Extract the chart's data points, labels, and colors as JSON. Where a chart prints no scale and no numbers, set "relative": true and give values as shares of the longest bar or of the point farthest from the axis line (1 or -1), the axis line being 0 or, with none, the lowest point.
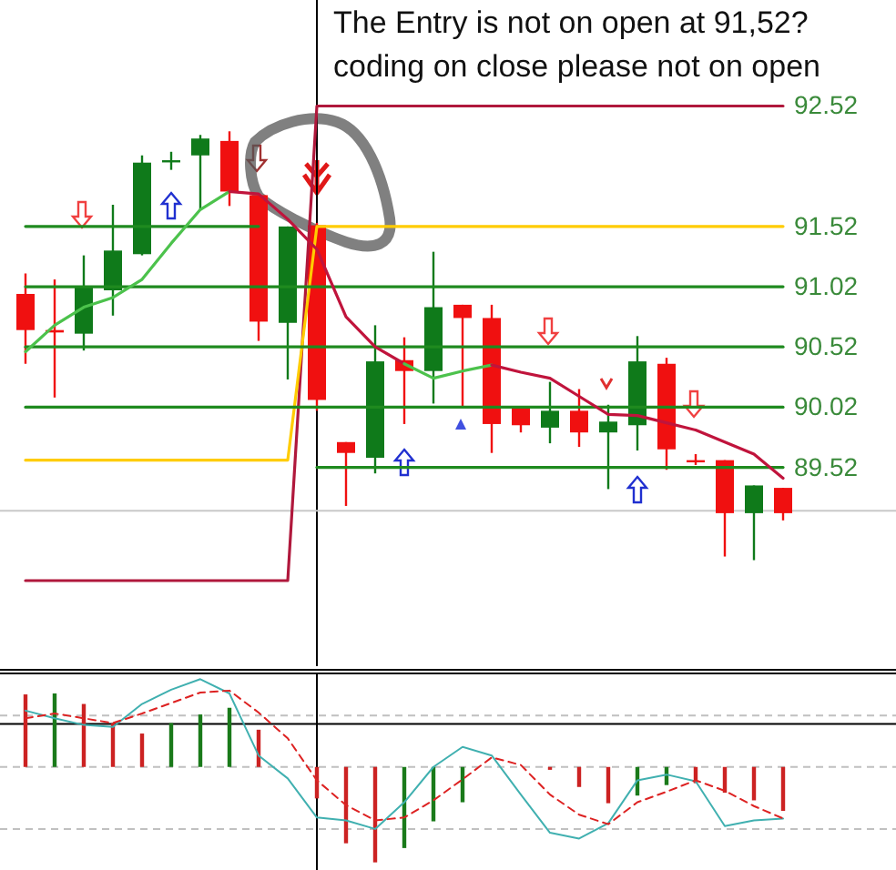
{
  "chart_data": [
    {
      "type": "candlestick",
      "annotations": [
        "The Entry is not on open at 91,52?",
        "coding on close please not on open"
      ],
      "categories": [
        null,
        null,
        null,
        null,
        null,
        null,
        null,
        null,
        null,
        null,
        null,
        null,
        null,
        null,
        null,
        null,
        null,
        null,
        null,
        null,
        null,
        null,
        null,
        null,
        null,
        null,
        null
      ],
      "ohlc": [
        [
          90.96,
          91.13,
          90.38,
          90.66
        ],
        [
          90.66,
          91.08,
          90.1,
          90.64
        ],
        [
          90.63,
          91.28,
          90.49,
          91.02
        ],
        [
          90.99,
          91.7,
          90.78,
          91.32
        ],
        [
          91.29,
          92.11,
          91.28,
          92.05
        ],
        [
          92.06,
          92.14,
          91.99,
          92.07
        ],
        [
          92.11,
          92.28,
          91.66,
          92.25
        ],
        [
          92.23,
          92.31,
          91.69,
          91.81
        ],
        [
          91.78,
          91.78,
          90.57,
          90.73
        ],
        [
          90.72,
          91.52,
          90.25,
          91.52
        ],
        [
          91.53,
          91.55,
          89.99,
          90.08
        ],
        [
          89.73,
          89.73,
          89.2,
          89.64
        ],
        [
          89.6,
          90.7,
          89.47,
          90.4
        ],
        [
          90.41,
          90.6,
          89.88,
          90.32
        ],
        [
          90.32,
          91.31,
          90.05,
          90.85
        ],
        [
          90.87,
          90.87,
          90.02,
          90.76
        ],
        [
          90.76,
          90.87,
          89.64,
          89.88
        ],
        [
          90.02,
          90.02,
          89.81,
          89.87
        ],
        [
          89.85,
          90.23,
          89.72,
          89.99
        ],
        [
          89.99,
          90.17,
          89.69,
          89.81
        ],
        [
          89.81,
          90.04,
          89.34,
          89.9
        ],
        [
          89.87,
          90.61,
          89.66,
          90.4
        ],
        [
          90.38,
          90.43,
          89.5,
          89.67
        ],
        [
          89.58,
          89.63,
          89.54,
          89.57
        ],
        [
          89.58,
          89.58,
          88.78,
          89.14
        ],
        [
          89.14,
          89.37,
          88.75,
          89.37
        ],
        [
          89.35,
          89.35,
          89.08,
          89.14
        ]
      ],
      "colors": [
        "#f01010",
        "#f01010",
        "#0f7a1a",
        "#0f7a1a",
        "#0f7a1a",
        "#0f7a1a",
        "#0f7a1a",
        "#f01010",
        "#f01010",
        "#0f7a1a",
        "#f01010",
        "#f01010",
        "#0f7a1a",
        "#f01010",
        "#0f7a1a",
        "#f01010",
        "#f01010",
        "#f01010",
        "#0f7a1a",
        "#f01010",
        "#0f7a1a",
        "#0f7a1a",
        "#f01010",
        "#f01010",
        "#f01010",
        "#0f7a1a",
        "#f01010"
      ],
      "series": [
        {
          "type": "line",
          "color": "#b0183c",
          "values": [
            88.58,
            88.58,
            88.58,
            88.58,
            88.58,
            88.58,
            88.58,
            88.58,
            88.58,
            88.58,
            92.52,
            92.52,
            92.52,
            92.52,
            92.52,
            92.52,
            92.52,
            92.52,
            92.52,
            92.52,
            92.52,
            92.52,
            92.52,
            92.52,
            92.52,
            92.52,
            92.52
          ]
        },
        {
          "type": "line",
          "color": "#ffcc00",
          "values": [
            89.58,
            89.58,
            89.58,
            89.58,
            89.58,
            89.58,
            89.58,
            89.58,
            89.58,
            89.58,
            91.52,
            91.52,
            91.52,
            91.52,
            91.52,
            91.52,
            91.52,
            91.52,
            91.52,
            91.52,
            91.52,
            91.52,
            91.52,
            91.52,
            91.52,
            91.52,
            91.52
          ]
        },
        {
          "type": "line",
          "color": "#1f8a1f",
          "values": [
            91.52,
            91.52,
            91.52,
            91.52,
            91.52,
            91.52,
            91.52,
            91.52,
            91.52,
            null,
            null,
            null,
            null,
            null,
            null,
            null,
            null,
            null,
            null,
            null,
            null,
            null,
            null,
            null,
            null,
            null,
            null
          ]
        },
        {
          "type": "line",
          "color": "#1f8a1f",
          "values": [
            91.02,
            91.02,
            91.02,
            91.02,
            91.02,
            91.02,
            91.02,
            91.02,
            91.02,
            91.02,
            91.02,
            91.02,
            91.02,
            91.02,
            91.02,
            91.02,
            91.02,
            91.02,
            91.02,
            91.02,
            91.02,
            91.02,
            91.02,
            91.02,
            91.02,
            91.02,
            91.02
          ]
        },
        {
          "type": "line",
          "color": "#1f8a1f",
          "values": [
            90.52,
            90.52,
            90.52,
            90.52,
            90.52,
            90.52,
            90.52,
            90.52,
            90.52,
            90.52,
            90.52,
            90.52,
            90.52,
            90.52,
            90.52,
            90.52,
            90.52,
            90.52,
            90.52,
            90.52,
            90.52,
            90.52,
            90.52,
            90.52,
            90.52,
            90.52,
            90.52
          ]
        },
        {
          "type": "line",
          "color": "#1f8a1f",
          "values": [
            90.02,
            90.02,
            90.02,
            90.02,
            90.02,
            90.02,
            90.02,
            90.02,
            90.02,
            90.02,
            90.02,
            90.02,
            90.02,
            90.02,
            90.02,
            90.02,
            90.02,
            90.02,
            90.02,
            90.02,
            90.02,
            90.02,
            90.02,
            90.02,
            90.02,
            90.02,
            90.02
          ]
        },
        {
          "type": "line",
          "color": "#1f8a1f",
          "values": [
            null,
            null,
            null,
            null,
            null,
            null,
            null,
            null,
            null,
            null,
            89.52,
            89.52,
            89.52,
            89.52,
            89.52,
            89.52,
            89.52,
            89.52,
            89.52,
            89.52,
            89.52,
            89.52,
            89.52,
            89.52,
            89.52,
            89.52,
            89.52
          ]
        },
        {
          "type": "line",
          "color": "#4cc24c",
          "values": [
            90.48,
            90.7,
            90.85,
            90.93,
            91.08,
            91.38,
            91.66,
            91.81,
            null,
            null,
            null,
            null,
            null,
            null,
            null,
            null,
            null,
            null,
            null,
            null,
            null,
            null,
            null,
            null,
            null,
            null,
            null
          ]
        },
        {
          "type": "line",
          "color": "#c0143c",
          "values": [
            null,
            null,
            null,
            null,
            null,
            null,
            null,
            91.81,
            91.79,
            91.58,
            91.33,
            90.77,
            90.52,
            90.38,
            null,
            null,
            null,
            null,
            null,
            null,
            null,
            null,
            null,
            null,
            null,
            null,
            null
          ]
        },
        {
          "type": "line",
          "color": "#4cc24c",
          "values": [
            null,
            null,
            null,
            null,
            null,
            null,
            null,
            null,
            null,
            null,
            null,
            null,
            null,
            90.38,
            90.26,
            90.32,
            90.37,
            null,
            null,
            null,
            null,
            null,
            null,
            null,
            null,
            null,
            null
          ]
        },
        {
          "type": "line",
          "color": "#c0143c",
          "values": [
            null,
            null,
            null,
            null,
            null,
            null,
            null,
            null,
            null,
            null,
            null,
            null,
            null,
            null,
            null,
            null,
            90.37,
            90.31,
            90.26,
            90.11,
            89.96,
            89.95,
            89.89,
            89.83,
            89.73,
            89.63,
            89.43
          ]
        }
      ],
      "ref_lines": [
        {
          "axis": "y",
          "value": 89.16,
          "color": "#c8c8c8"
        }
      ],
      "ylim": [
        87.87,
        93.4
      ],
      "yticks": [
        92.52,
        91.52,
        91.02,
        90.52,
        90.02,
        89.52
      ],
      "tick_labels": "y"
    },
    {
      "type": "bar",
      "relative": true,
      "categories": [
        null,
        null,
        null,
        null,
        null,
        null,
        null,
        null,
        null,
        null,
        null,
        null,
        null,
        null,
        null,
        null,
        null,
        null,
        null,
        null,
        null,
        null,
        null,
        null,
        null,
        null,
        null
      ],
      "values": [
        0.76,
        0.77,
        0.66,
        0.46,
        0.35,
        0.46,
        0.55,
        0.62,
        0.39,
        null,
        -0.33,
        -0.8,
        -1,
        -0.85,
        -0.57,
        -0.37,
        null,
        null,
        -0.03,
        -0.21,
        -0.38,
        -0.3,
        -0.19,
        -0.17,
        -0.27,
        -0.35,
        -0.46
      ],
      "colors": [
        "#cc2222",
        "#1a7a1a",
        "#cc2222",
        "#cc2222",
        "#cc2222",
        "#1a7a1a",
        "#1a7a1a",
        "#1a7a1a",
        "#cc2222",
        null,
        "#cc2222",
        "#cc2222",
        "#cc2222",
        "#1a7a1a",
        "#1a7a1a",
        "#1a7a1a",
        null,
        null,
        "#cc2222",
        "#cc2222",
        "#cc2222",
        "#1a7a1a",
        "#1a7a1a",
        "#cc2222",
        "#cc2222",
        "#cc2222",
        "#cc2222"
      ],
      "series": [
        {
          "type": "line",
          "color": "#40b0b0",
          "values": [
            0.59,
            0.51,
            0.44,
            0.42,
            0.66,
            0.81,
            0.92,
            0.77,
            0.12,
            -0.12,
            -0.53,
            -0.56,
            -0.65,
            -0.37,
            0,
            0.21,
            0.12,
            -0.29,
            -0.69,
            -0.75,
            -0.59,
            -0.14,
            -0.08,
            -0.15,
            -0.62,
            -0.56,
            -0.54
          ]
        },
        {
          "type": "line",
          "color": "#dd2222",
          "line_style": "dashed",
          "values": [
            0.51,
            0.56,
            0.51,
            0.46,
            0.56,
            0.67,
            0.78,
            0.8,
            0.57,
            0.3,
            -0.14,
            -0.4,
            -0.56,
            -0.53,
            -0.35,
            -0.13,
            0.1,
            0.02,
            -0.29,
            -0.5,
            -0.6,
            -0.37,
            -0.26,
            -0.14,
            -0.25,
            -0.41,
            -0.54
          ]
        }
      ],
      "ref_lines": [
        {
          "axis": "y",
          "value": 0.54,
          "color": "#c0c0c0",
          "line_style": "dashed"
        },
        {
          "axis": "y",
          "value": 0,
          "color": "#c0c0c0",
          "line_style": "dashed"
        },
        {
          "axis": "y",
          "value": -0.65,
          "color": "#c0c0c0",
          "line_style": "dashed"
        },
        {
          "axis": "y",
          "value": 0.45,
          "color": "#000000"
        }
      ],
      "tick_labels": false
    }
  ]
}
